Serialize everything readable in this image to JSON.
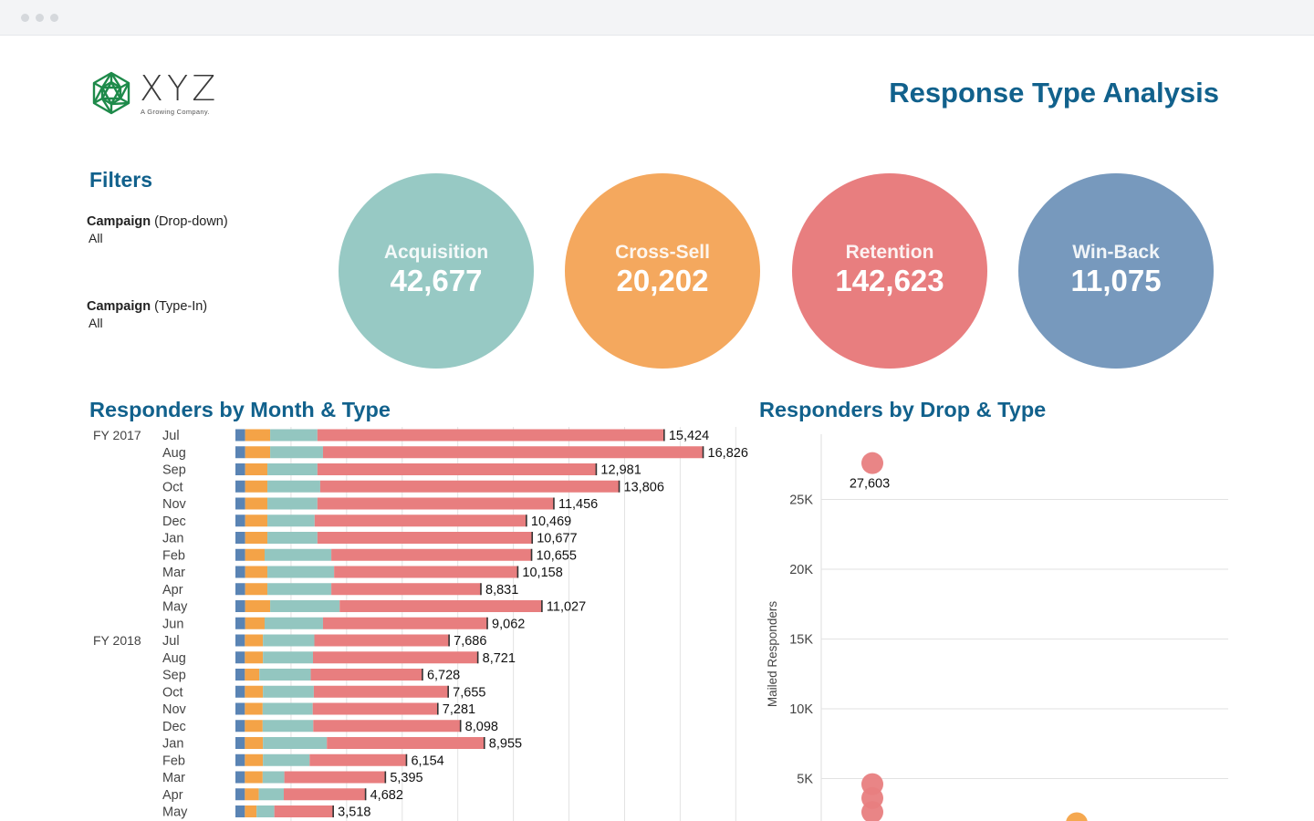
{
  "header": {
    "logo_text": "XYZ",
    "logo_tagline": "A Growing Company.",
    "title": "Response Type Analysis"
  },
  "filters": {
    "title": "Filters",
    "items": [
      {
        "label_bold": "Campaign",
        "label_rest": " (Drop-down)",
        "value": "All"
      },
      {
        "label_bold": "Campaign",
        "label_rest": " (Type-In)",
        "value": "All"
      }
    ]
  },
  "kpis": [
    {
      "name": "Acquisition",
      "value": "42,677",
      "color": "#97c9c4"
    },
    {
      "name": "Cross-Sell",
      "value": "20,202",
      "color": "#f4a85e"
    },
    {
      "name": "Retention",
      "value": "142,623",
      "color": "#e87e7f"
    },
    {
      "name": "Win-Back",
      "value": "11,075",
      "color": "#7799bd"
    }
  ],
  "colors": {
    "win_back": "#5a84b4",
    "cross_sell": "#f4a347",
    "acquisition": "#93c6c0",
    "retention": "#e87e7f",
    "accent": "#11618c"
  },
  "chart_data": [
    {
      "type": "bar",
      "title": "Responders by Month & Type",
      "groups": [
        "FY 2017",
        "FY 2018"
      ],
      "categories": [
        "Jul",
        "Aug",
        "Sep",
        "Oct",
        "Nov",
        "Dec",
        "Jan",
        "Feb",
        "Mar",
        "Apr",
        "May",
        "Jun",
        "Jul",
        "Aug",
        "Sep",
        "Oct",
        "Nov",
        "Dec",
        "Jan",
        "Feb",
        "Mar",
        "Apr",
        "May"
      ],
      "fiscal_year": [
        "FY 2017",
        "FY 2017",
        "FY 2017",
        "FY 2017",
        "FY 2017",
        "FY 2017",
        "FY 2017",
        "FY 2017",
        "FY 2017",
        "FY 2017",
        "FY 2017",
        "FY 2017",
        "FY 2018",
        "FY 2018",
        "FY 2018",
        "FY 2018",
        "FY 2018",
        "FY 2018",
        "FY 2018",
        "FY 2018",
        "FY 2018",
        "FY 2018",
        "FY 2018"
      ],
      "totals": [
        15424,
        16826,
        12981,
        13806,
        11456,
        10469,
        10677,
        10655,
        10158,
        8831,
        11027,
        9062,
        7686,
        8721,
        6728,
        7655,
        7281,
        8098,
        8955,
        6154,
        5395,
        4682,
        3518
      ],
      "total_labels": [
        "15,424",
        "16,826",
        "12,981",
        "13,806",
        "11,456",
        "10,469",
        "10,677",
        "10,655",
        "10,158",
        "8,831",
        "11,027",
        "9,062",
        "7,686",
        "8,721",
        "6,728",
        "7,655",
        "7,281",
        "8,098",
        "8,955",
        "6,154",
        "5,395",
        "4,682",
        "3,518"
      ],
      "series": [
        {
          "name": "Win-Back",
          "values": [
            350,
            350,
            350,
            350,
            350,
            350,
            350,
            350,
            350,
            350,
            350,
            350,
            340,
            340,
            340,
            340,
            340,
            340,
            340,
            340,
            340,
            340,
            340
          ]
        },
        {
          "name": "Cross-Sell",
          "values": [
            900,
            900,
            800,
            800,
            800,
            800,
            800,
            700,
            800,
            800,
            900,
            700,
            650,
            650,
            520,
            650,
            640,
            640,
            650,
            650,
            640,
            500,
            420
          ]
        },
        {
          "name": "Acquisition",
          "values": [
            1700,
            1900,
            1800,
            1900,
            1800,
            1700,
            1800,
            2400,
            2400,
            2300,
            2500,
            2100,
            1850,
            1800,
            1850,
            1830,
            1800,
            1820,
            2300,
            1680,
            780,
            900,
            640
          ]
        },
        {
          "name": "Retention",
          "values": [
            12474,
            13676,
            10031,
            10756,
            8506,
            7619,
            7727,
            7205,
            6608,
            5381,
            7277,
            5912,
            4846,
            5931,
            4018,
            4835,
            4501,
            5298,
            5665,
            3484,
            3635,
            2942,
            2118
          ]
        }
      ],
      "xlim": [
        0,
        18000
      ]
    },
    {
      "type": "scatter",
      "title": "Responders by Drop & Type",
      "ylabel": "Mailed Responders",
      "yticks": [
        "5K",
        "10K",
        "15K",
        "20K",
        "25K"
      ],
      "ylim": [
        0,
        28500
      ],
      "points": [
        {
          "series": "Retention",
          "drop": 1,
          "y": 27603,
          "label": "27,603"
        },
        {
          "series": "Retention",
          "drop": 1,
          "y": 4600
        },
        {
          "series": "Retention",
          "drop": 1,
          "y": 3600
        },
        {
          "series": "Retention",
          "drop": 1,
          "y": 2600
        },
        {
          "series": "Cross-Sell",
          "drop": 2,
          "y": 1800
        }
      ]
    }
  ]
}
